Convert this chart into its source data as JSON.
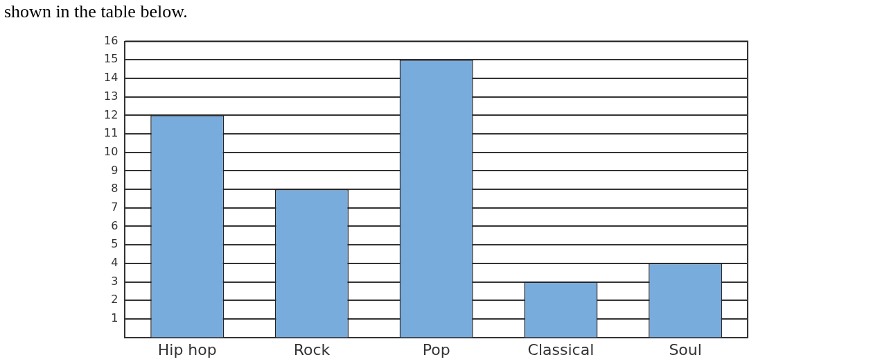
{
  "chart_data": {
    "type": "bar",
    "categories": [
      "Hip hop",
      "Rock",
      "Pop",
      "Classical",
      "Soul"
    ],
    "values": [
      12,
      8,
      15,
      3,
      4
    ],
    "color": "#78acdd",
    "ylim": [
      0,
      16
    ],
    "yticks": [
      1,
      2,
      3,
      4,
      5,
      6,
      7,
      8,
      9,
      10,
      11,
      12,
      13,
      14,
      15,
      16
    ],
    "grid": "y",
    "legend": false,
    "annotations": [
      "shown in the table below."
    ]
  }
}
